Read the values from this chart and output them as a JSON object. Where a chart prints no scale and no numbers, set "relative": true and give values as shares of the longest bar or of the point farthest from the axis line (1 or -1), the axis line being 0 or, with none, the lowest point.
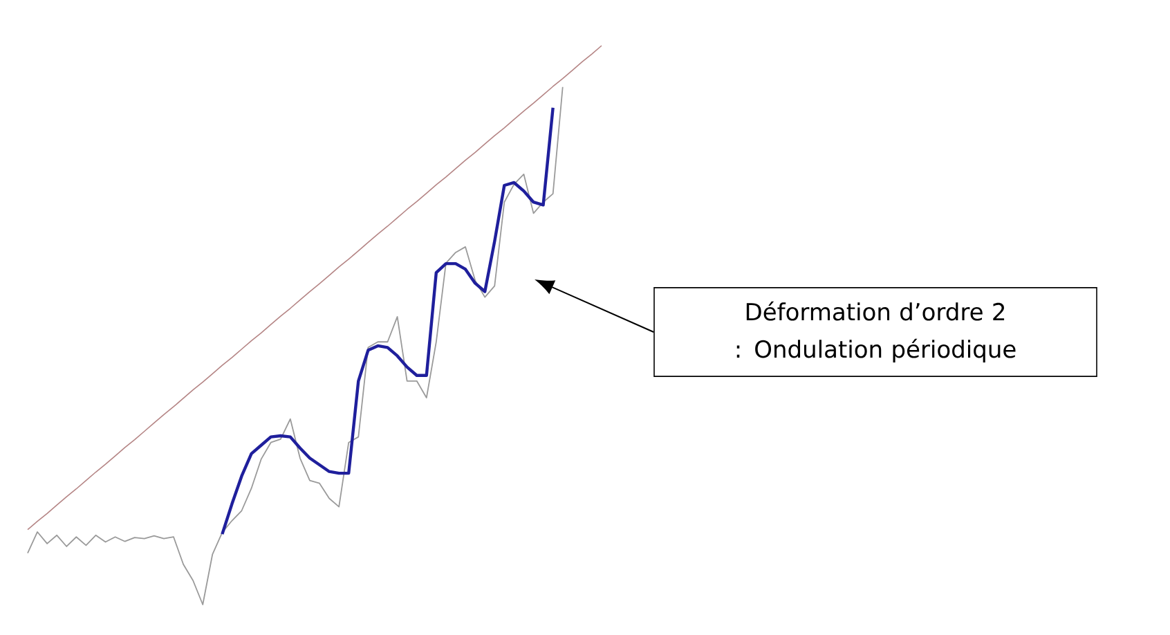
{
  "chart_data": {
    "type": "line",
    "relative": true,
    "marker": "none",
    "categories": [
      null,
      null,
      null,
      null,
      null,
      null,
      null,
      null,
      null,
      null,
      null,
      null,
      null,
      null,
      null,
      null,
      null,
      null,
      null,
      null,
      null,
      null,
      null,
      null,
      null,
      null,
      null,
      null,
      null,
      null,
      null,
      null,
      null,
      null,
      null,
      null,
      null,
      null,
      null,
      null,
      null,
      null,
      null,
      null,
      null,
      null,
      null,
      null,
      null,
      null,
      null,
      null,
      null,
      null,
      null,
      null,
      null,
      null,
      null,
      null
    ],
    "series": [
      {
        "color": "#9a9a9a",
        "values": [
          0.092,
          0.13,
          0.109,
          0.124,
          0.104,
          0.121,
          0.106,
          0.124,
          0.112,
          0.121,
          0.113,
          0.12,
          0.118,
          0.123,
          0.118,
          0.121,
          0.072,
          0.043,
          0,
          0.09,
          0.129,
          0.15,
          0.168,
          0.208,
          0.26,
          0.29,
          0.296,
          0.332,
          0.262,
          0.222,
          0.217,
          0.19,
          0.175,
          0.29,
          0.3,
          0.46,
          0.47,
          0.47,
          0.515,
          0.4,
          0.4,
          0.37,
          0.47,
          0.611,
          0.63,
          0.64,
          0.58,
          0.55,
          0.57,
          0.72,
          0.752,
          0.77,
          0.7,
          0.72,
          0.735,
          0.926,
          null,
          null,
          null,
          null
        ]
      },
      {
        "color": "#1f1f9c",
        "values": [
          null,
          null,
          null,
          null,
          null,
          null,
          null,
          null,
          null,
          null,
          null,
          null,
          null,
          null,
          null,
          null,
          null,
          null,
          null,
          null,
          0.126,
          0.18,
          0.23,
          0.27,
          0.285,
          0.3,
          0.302,
          0.3,
          0.28,
          0.262,
          0.25,
          0.238,
          0.235,
          0.235,
          0.4,
          0.455,
          0.463,
          0.46,
          0.445,
          0.425,
          0.41,
          0.41,
          0.594,
          0.61,
          0.61,
          0.6,
          0.575,
          0.56,
          0.65,
          0.75,
          0.755,
          0.74,
          0.72,
          0.715,
          0.889,
          null,
          null,
          null,
          null,
          null
        ]
      },
      {
        "color": "#b58585",
        "values": [
          0.134,
          0.149,
          0.163,
          0.178,
          0.193,
          0.207,
          0.222,
          0.237,
          0.251,
          0.266,
          0.281,
          0.295,
          0.31,
          0.325,
          0.34,
          0.354,
          0.369,
          0.384,
          0.398,
          0.413,
          0.428,
          0.442,
          0.457,
          0.472,
          0.486,
          0.501,
          0.516,
          0.53,
          0.545,
          0.56,
          0.574,
          0.589,
          0.604,
          0.618,
          0.633,
          0.648,
          0.663,
          0.677,
          0.692,
          0.707,
          0.721,
          0.736,
          0.751,
          0.765,
          0.78,
          0.795,
          0.809,
          0.824,
          0.839,
          0.853,
          0.868,
          0.883,
          0.897,
          0.912,
          0.927,
          0.941,
          0.956,
          0.971,
          0.985,
          1.0
        ]
      }
    ],
    "annotations": [
      "Déformation d’ordre 2 : Ondulation périodique"
    ]
  }
}
